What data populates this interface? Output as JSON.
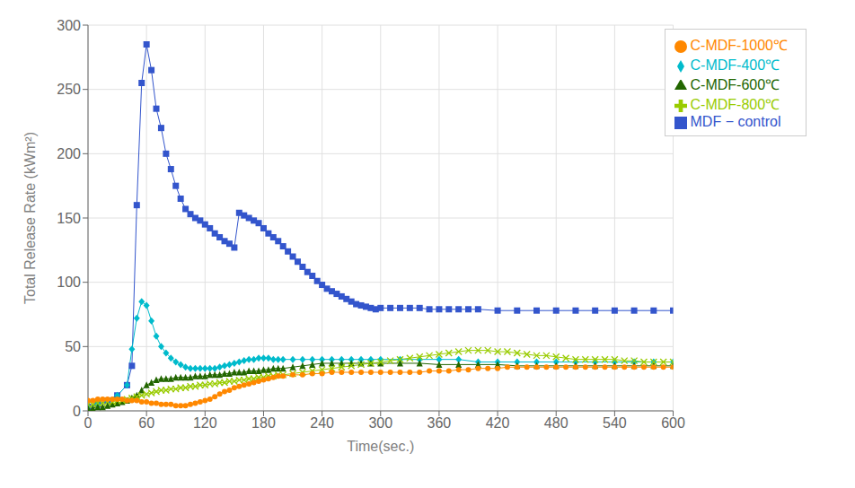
{
  "chart_data": {
    "type": "line",
    "xlabel": "Time(sec.)",
    "ylabel": "Total Release Rate (kWm²)",
    "xlim": [
      0,
      600
    ],
    "ylim": [
      0,
      300
    ],
    "xticks": [
      0,
      60,
      120,
      180,
      240,
      300,
      360,
      420,
      480,
      540,
      600
    ],
    "yticks": [
      0,
      50,
      100,
      150,
      200,
      250,
      300
    ],
    "grid": true,
    "legend": "upper right",
    "series": [
      {
        "name": "MDF − control",
        "color": "#3355cc",
        "marker": "square",
        "x": [
          0,
          10,
          20,
          30,
          40,
          45,
          50,
          55,
          60,
          65,
          70,
          75,
          80,
          85,
          90,
          95,
          100,
          105,
          110,
          115,
          120,
          125,
          130,
          135,
          140,
          145,
          150,
          155,
          160,
          165,
          170,
          175,
          180,
          185,
          190,
          195,
          200,
          205,
          210,
          215,
          220,
          225,
          230,
          235,
          240,
          245,
          250,
          255,
          260,
          265,
          270,
          275,
          280,
          285,
          290,
          295,
          300,
          310,
          320,
          330,
          340,
          350,
          360,
          370,
          380,
          390,
          400,
          420,
          440,
          460,
          480,
          500,
          520,
          540,
          560,
          580,
          600
        ],
        "values": [
          3,
          5,
          8,
          12,
          20,
          35,
          160,
          255,
          285,
          265,
          235,
          220,
          200,
          188,
          175,
          165,
          157,
          153,
          150,
          148,
          145,
          142,
          138,
          135,
          132,
          130,
          127,
          154,
          152,
          150,
          148,
          146,
          142,
          138,
          135,
          132,
          128,
          124,
          120,
          116,
          112,
          108,
          105,
          101,
          98,
          95,
          93,
          91,
          89,
          87,
          85,
          83,
          82,
          81,
          80,
          79,
          80,
          80,
          80,
          80,
          80,
          79,
          79,
          79,
          79,
          79,
          79,
          78,
          78,
          78,
          78,
          78,
          78,
          78,
          78,
          78,
          78
        ]
      },
      {
        "name": "C-MDF-400℃",
        "color": "#00bbcc",
        "marker": "diamond",
        "x": [
          0,
          10,
          20,
          30,
          40,
          45,
          50,
          55,
          60,
          65,
          70,
          75,
          80,
          85,
          90,
          95,
          100,
          105,
          110,
          115,
          120,
          125,
          130,
          135,
          140,
          145,
          150,
          155,
          160,
          165,
          170,
          175,
          180,
          185,
          190,
          195,
          200,
          210,
          220,
          230,
          240,
          250,
          260,
          270,
          280,
          290,
          300,
          320,
          340,
          360,
          380,
          400,
          420,
          440,
          460,
          480,
          500,
          520,
          540,
          560,
          580,
          600
        ],
        "values": [
          3,
          5,
          8,
          12,
          20,
          48,
          72,
          85,
          82,
          70,
          58,
          50,
          45,
          41,
          38,
          36,
          34,
          33,
          33,
          33,
          33,
          33,
          33,
          34,
          35,
          36,
          37,
          38,
          39,
          40,
          40,
          41,
          41,
          41,
          40,
          40,
          40,
          40,
          40,
          40,
          40,
          40,
          40,
          40,
          40,
          40,
          40,
          40,
          40,
          40,
          40,
          38,
          38,
          38,
          38,
          38,
          38,
          38,
          38,
          38,
          38,
          38
        ]
      },
      {
        "name": "C-MDF-600℃",
        "color": "#226600",
        "marker": "triangle",
        "x": [
          0,
          5,
          10,
          15,
          20,
          25,
          30,
          35,
          40,
          45,
          50,
          55,
          60,
          65,
          70,
          75,
          80,
          85,
          90,
          95,
          100,
          105,
          110,
          115,
          120,
          125,
          130,
          135,
          140,
          145,
          150,
          155,
          160,
          165,
          170,
          175,
          180,
          185,
          190,
          195,
          200,
          210,
          220,
          230,
          240,
          250,
          260,
          270,
          280,
          290,
          300,
          320,
          340,
          360,
          380,
          400,
          420,
          440,
          460,
          480,
          500,
          520,
          540,
          560,
          580,
          600
        ],
        "values": [
          2,
          2,
          3,
          3,
          4,
          5,
          6,
          7,
          8,
          10,
          12,
          16,
          20,
          22,
          24,
          25,
          25,
          25,
          26,
          26,
          26,
          26,
          27,
          27,
          27,
          28,
          28,
          28,
          29,
          29,
          30,
          30,
          30,
          31,
          31,
          31,
          32,
          32,
          33,
          33,
          33,
          34,
          35,
          36,
          37,
          37,
          37,
          37,
          37,
          37,
          37,
          37,
          37,
          36,
          36,
          36,
          36,
          35,
          35,
          35,
          35,
          35,
          35,
          35,
          35,
          35
        ]
      },
      {
        "name": "C-MDF-800℃",
        "color": "#99cc00",
        "marker": "x",
        "x": [
          0,
          5,
          10,
          15,
          20,
          25,
          30,
          35,
          40,
          45,
          50,
          55,
          60,
          65,
          70,
          75,
          80,
          85,
          90,
          95,
          100,
          105,
          110,
          115,
          120,
          125,
          130,
          135,
          140,
          145,
          150,
          155,
          160,
          165,
          170,
          175,
          180,
          185,
          190,
          195,
          200,
          210,
          220,
          230,
          240,
          250,
          260,
          270,
          280,
          290,
          300,
          310,
          320,
          330,
          340,
          350,
          360,
          370,
          380,
          390,
          400,
          410,
          420,
          430,
          440,
          450,
          460,
          470,
          480,
          490,
          500,
          510,
          520,
          530,
          540,
          550,
          560,
          570,
          580,
          590,
          600
        ],
        "values": [
          5,
          5,
          6,
          6,
          7,
          7,
          8,
          8,
          9,
          10,
          11,
          12,
          13,
          14,
          15,
          16,
          16,
          17,
          17,
          18,
          18,
          19,
          19,
          20,
          20,
          21,
          21,
          22,
          22,
          23,
          23,
          24,
          24,
          25,
          25,
          26,
          26,
          27,
          27,
          28,
          28,
          29,
          30,
          31,
          32,
          33,
          34,
          35,
          36,
          37,
          38,
          39,
          40,
          41,
          42,
          43,
          44,
          45,
          46,
          47,
          47,
          47,
          46,
          46,
          45,
          44,
          43,
          43,
          42,
          41,
          40,
          40,
          40,
          40,
          40,
          39,
          39,
          38,
          38,
          38,
          38
        ]
      },
      {
        "name": "C-MDF-1000℃",
        "color": "#ff8800",
        "marker": "circle",
        "x": [
          0,
          5,
          10,
          15,
          20,
          25,
          30,
          35,
          40,
          45,
          50,
          55,
          60,
          65,
          70,
          75,
          80,
          85,
          90,
          95,
          100,
          105,
          110,
          115,
          120,
          125,
          130,
          135,
          140,
          145,
          150,
          155,
          160,
          165,
          170,
          175,
          180,
          185,
          190,
          195,
          200,
          210,
          220,
          230,
          240,
          250,
          260,
          270,
          280,
          290,
          300,
          310,
          320,
          330,
          340,
          350,
          360,
          370,
          380,
          390,
          400,
          410,
          420,
          430,
          440,
          450,
          460,
          470,
          480,
          490,
          500,
          510,
          520,
          530,
          540,
          550,
          560,
          570,
          580,
          590,
          600
        ],
        "values": [
          8,
          8,
          9,
          9,
          9,
          9,
          9,
          9,
          8,
          8,
          8,
          7,
          7,
          6,
          6,
          5,
          5,
          5,
          4,
          4,
          4,
          5,
          6,
          7,
          8,
          9,
          11,
          13,
          15,
          16,
          18,
          19,
          20,
          21,
          22,
          23,
          24,
          25,
          26,
          27,
          27,
          28,
          28,
          29,
          29,
          30,
          30,
          30,
          30,
          30,
          30,
          30,
          30,
          30,
          30,
          31,
          31,
          31,
          32,
          32,
          33,
          33,
          33,
          34,
          34,
          34,
          34,
          34,
          34,
          34,
          34,
          34,
          34,
          34,
          34,
          34,
          34,
          34,
          34,
          34,
          34
        ]
      }
    ]
  }
}
